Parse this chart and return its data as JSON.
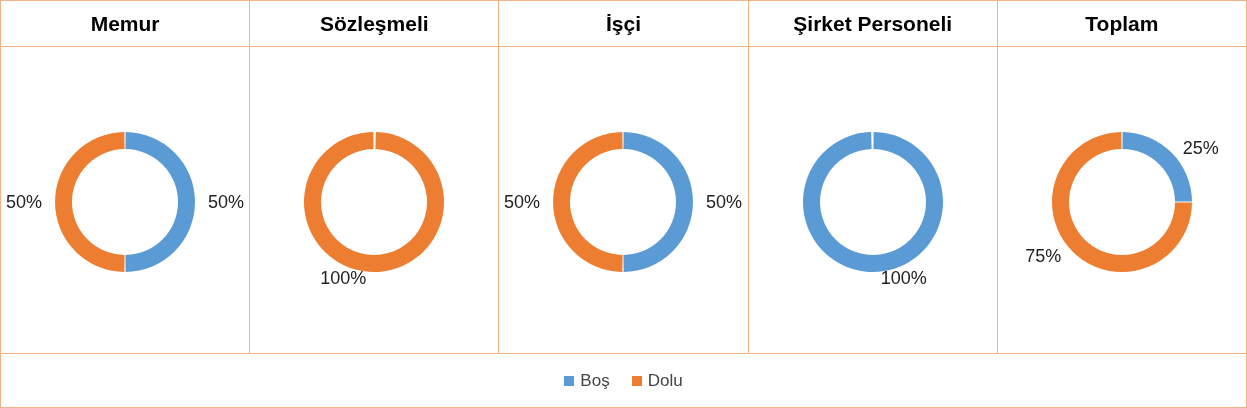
{
  "chart_data": {
    "type": "donut",
    "categories": [
      "Boş",
      "Dolu"
    ],
    "legend": "bottom",
    "series": [
      {
        "name": "Memur",
        "values": [
          50,
          50
        ],
        "colors": [
          "#5b9bd5",
          "#ed7d31"
        ],
        "value_labels": [
          "50%",
          "50%"
        ]
      },
      {
        "name": "Sözleşmeli",
        "values": [
          0,
          100
        ],
        "colors": [
          "#5b9bd5",
          "#ed7d31"
        ],
        "value_labels": [
          null,
          "100%"
        ]
      },
      {
        "name": "İşçi",
        "values": [
          50,
          50
        ],
        "colors": [
          "#5b9bd5",
          "#ed7d31"
        ],
        "value_labels": [
          "50%",
          "50%"
        ]
      },
      {
        "name": "Şirket Personeli",
        "values": [
          100,
          0
        ],
        "colors": [
          "#5b9bd5",
          "#ed7d31"
        ],
        "value_labels": [
          "100%",
          null
        ]
      },
      {
        "name": "Toplam",
        "values": [
          25,
          75
        ],
        "colors": [
          "#5b9bd5",
          "#ed7d31"
        ],
        "value_labels": [
          "25%",
          "75%"
        ]
      }
    ]
  }
}
